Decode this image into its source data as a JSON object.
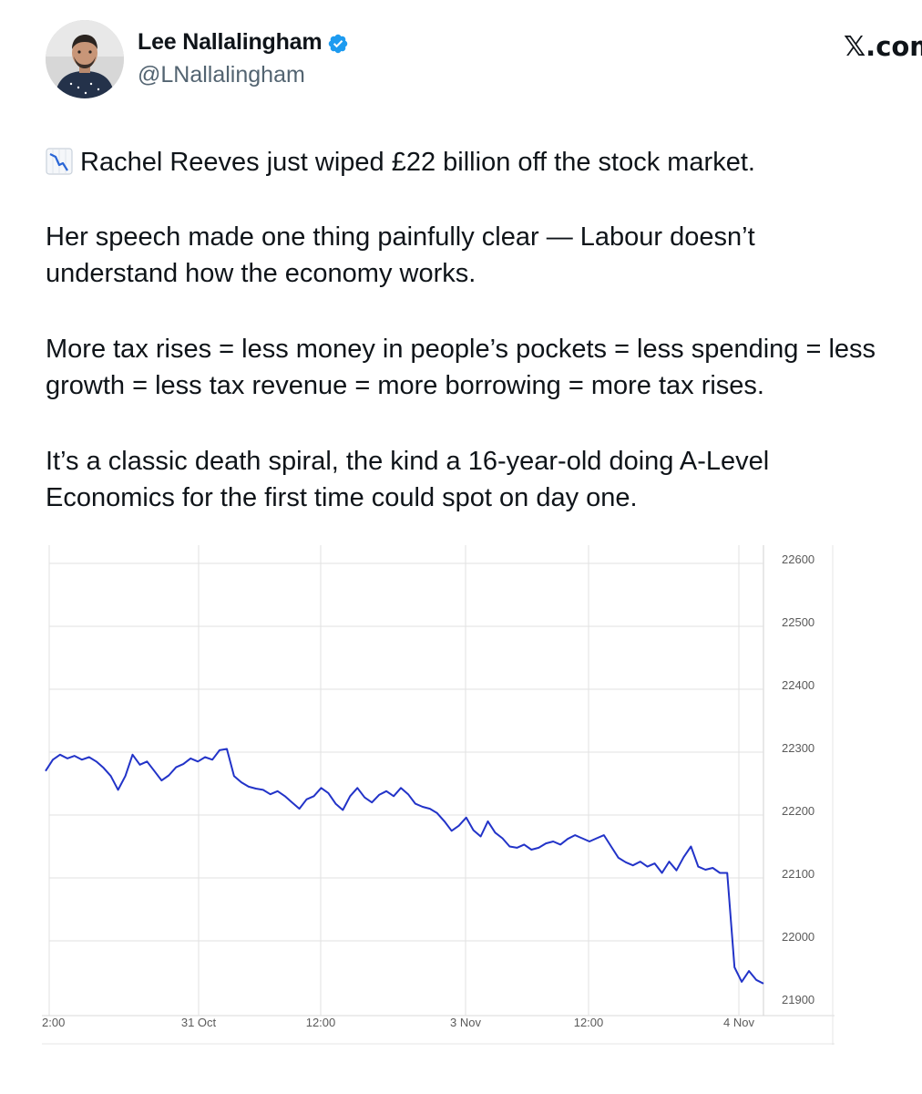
{
  "author": {
    "display_name": "Lee Nallalingham",
    "handle": "@LNallalingham",
    "verified": true,
    "avatar_icon": "profile-photo-avatar"
  },
  "brand": {
    "logo_text": "X.com",
    "logo_x": "𝕏",
    "logo_suffix": ".com"
  },
  "tweet": {
    "emoji_icon": "chart-decreasing-icon",
    "paragraphs": [
      "Rachel Reeves just wiped £22 billion off the stock market.",
      "Her speech made one thing painfully clear — Labour doesn’t understand how the economy works.",
      "More tax rises = less money in people’s pockets = less spending = less growth = less tax revenue = more borrowing = more tax rises.",
      "It’s a classic death spiral, the kind a 16-year-old doing A-Level Economics for the first time could spot on day one."
    ]
  },
  "colors": {
    "line": "#2233c8",
    "grid": "#e2e2e2",
    "verified_badge": "#1d9bf0"
  },
  "chart_data": {
    "type": "line",
    "title": "",
    "xlabel": "",
    "ylabel": "",
    "x_tick_labels": [
      "2:00",
      "31 Oct",
      "12:00",
      "3 Nov",
      "12:00",
      "4 Nov"
    ],
    "y_tick_labels": [
      "22600",
      "22500",
      "22400",
      "22300",
      "22200",
      "22100",
      "22000",
      "21900"
    ],
    "ylim": [
      21900,
      22600
    ],
    "y_axis_side": "right",
    "grid": true,
    "series": [
      {
        "points": [
          [
            0,
            22270
          ],
          [
            1,
            22288
          ],
          [
            2,
            22296
          ],
          [
            3,
            22290
          ],
          [
            4,
            22294
          ],
          [
            5,
            22288
          ],
          [
            6,
            22292
          ],
          [
            7,
            22285
          ],
          [
            8,
            22275
          ],
          [
            9,
            22262
          ],
          [
            10,
            22240
          ],
          [
            11,
            22262
          ],
          [
            12,
            22296
          ],
          [
            13,
            22280
          ],
          [
            14,
            22285
          ],
          [
            15,
            22270
          ],
          [
            16,
            22255
          ],
          [
            17,
            22263
          ],
          [
            18,
            22276
          ],
          [
            19,
            22281
          ],
          [
            20,
            22290
          ],
          [
            21,
            22285
          ],
          [
            22,
            22292
          ],
          [
            23,
            22288
          ],
          [
            24,
            22303
          ],
          [
            25,
            22305
          ],
          [
            26,
            22262
          ],
          [
            27,
            22252
          ],
          [
            28,
            22245
          ],
          [
            29,
            22242
          ],
          [
            30,
            22240
          ],
          [
            31,
            22233
          ],
          [
            32,
            22238
          ],
          [
            33,
            22230
          ],
          [
            34,
            22220
          ],
          [
            35,
            22210
          ],
          [
            36,
            22225
          ],
          [
            37,
            22230
          ],
          [
            38,
            22243
          ],
          [
            39,
            22235
          ],
          [
            40,
            22218
          ],
          [
            41,
            22208
          ],
          [
            42,
            22230
          ],
          [
            43,
            22243
          ],
          [
            44,
            22228
          ],
          [
            45,
            22220
          ],
          [
            46,
            22232
          ],
          [
            47,
            22238
          ],
          [
            48,
            22230
          ],
          [
            49,
            22243
          ],
          [
            50,
            22233
          ],
          [
            51,
            22218
          ],
          [
            52,
            22213
          ],
          [
            53,
            22210
          ],
          [
            54,
            22203
          ],
          [
            55,
            22190
          ],
          [
            56,
            22175
          ],
          [
            57,
            22183
          ],
          [
            58,
            22196
          ],
          [
            59,
            22176
          ],
          [
            60,
            22166
          ],
          [
            61,
            22190
          ],
          [
            62,
            22172
          ],
          [
            63,
            22163
          ],
          [
            64,
            22150
          ],
          [
            65,
            22148
          ],
          [
            66,
            22153
          ],
          [
            67,
            22145
          ],
          [
            68,
            22148
          ],
          [
            69,
            22155
          ],
          [
            70,
            22158
          ],
          [
            71,
            22153
          ],
          [
            72,
            22162
          ],
          [
            73,
            22168
          ],
          [
            74,
            22163
          ],
          [
            75,
            22158
          ],
          [
            76,
            22163
          ],
          [
            77,
            22168
          ],
          [
            78,
            22150
          ],
          [
            79,
            22132
          ],
          [
            80,
            22125
          ],
          [
            81,
            22120
          ],
          [
            82,
            22126
          ],
          [
            83,
            22118
          ],
          [
            84,
            22123
          ],
          [
            85,
            22108
          ],
          [
            86,
            22126
          ],
          [
            87,
            22112
          ],
          [
            88,
            22133
          ],
          [
            89,
            22150
          ],
          [
            90,
            22118
          ],
          [
            91,
            22113
          ],
          [
            92,
            22116
          ],
          [
            93,
            22108
          ],
          [
            94,
            22108
          ],
          [
            95,
            21958
          ],
          [
            96,
            21935
          ],
          [
            97,
            21952
          ],
          [
            98,
            21938
          ],
          [
            99,
            21932
          ]
        ]
      }
    ]
  }
}
